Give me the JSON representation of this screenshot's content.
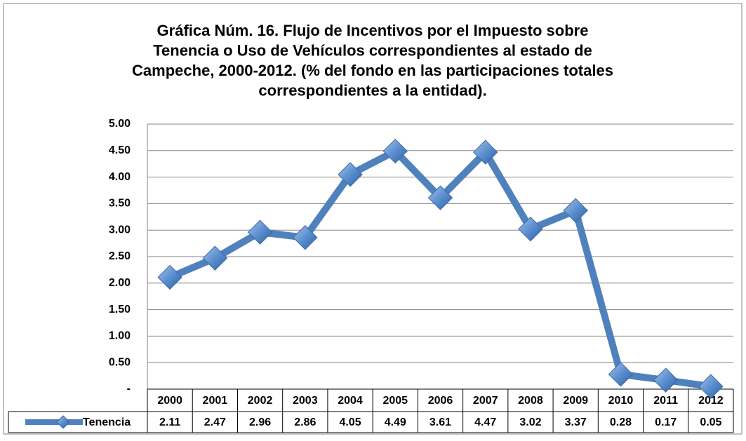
{
  "chart_data": {
    "type": "line",
    "title": [
      "Gráfica Núm. 16. Flujo de Incentivos por el Impuesto sobre",
      "Tenencia o Uso de Vehículos correspondientes al estado de",
      "Campeche, 2000-2012. (% del fondo en las participaciones totales",
      "correspondientes a la entidad)."
    ],
    "categories": [
      "2000",
      "2001",
      "2002",
      "2003",
      "2004",
      "2005",
      "2006",
      "2007",
      "2008",
      "2009",
      "2010",
      "2011",
      "2012"
    ],
    "series": [
      {
        "name": "Tenencia",
        "color": "#4f81bd",
        "values": [
          2.11,
          2.47,
          2.96,
          2.86,
          4.05,
          4.49,
          3.61,
          4.47,
          3.02,
          3.37,
          0.28,
          0.17,
          0.05
        ]
      }
    ],
    "ylim": [
      0,
      5
    ],
    "yticks": [
      {
        "value": 0,
        "label": "-"
      },
      {
        "value": 0.5,
        "label": "0.50"
      },
      {
        "value": 1,
        "label": "1.00"
      },
      {
        "value": 1.5,
        "label": "1.50"
      },
      {
        "value": 2,
        "label": "2.00"
      },
      {
        "value": 2.5,
        "label": "2.50"
      },
      {
        "value": 3,
        "label": "3.00"
      },
      {
        "value": 3.5,
        "label": "3.50"
      },
      {
        "value": 4,
        "label": "4.00"
      },
      {
        "value": 4.5,
        "label": "4.50"
      },
      {
        "value": 5,
        "label": "5.00"
      }
    ],
    "grid": true,
    "data_table": true
  }
}
